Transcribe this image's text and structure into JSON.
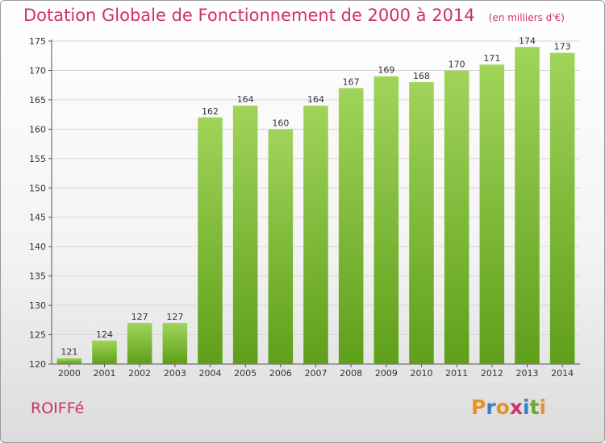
{
  "header": {
    "title": "Dotation Globale de Fonctionnement de 2000 à 2014",
    "subtitle": "(en milliers d'€)"
  },
  "footer": {
    "commune": "ROIFFé",
    "logo_text": "Proxiti",
    "logo_colors": [
      "#e8912c",
      "#3d7ec9",
      "#e8912c",
      "#d0306c",
      "#3d7ec9",
      "#6aa92e",
      "#e8912c"
    ]
  },
  "colors": {
    "title": "#d0306c",
    "bar_top": "#a0d45a",
    "bar_bottom": "#5f9f1a",
    "grid": "#d6d6d6",
    "axis": "#555555"
  },
  "chart_data": {
    "type": "bar",
    "title": "Dotation Globale de Fonctionnement de 2000 à 2014",
    "subtitle": "(en milliers d'€)",
    "xlabel": "",
    "ylabel": "",
    "categories": [
      "2000",
      "2001",
      "2002",
      "2003",
      "2004",
      "2005",
      "2006",
      "2007",
      "2008",
      "2009",
      "2010",
      "2011",
      "2012",
      "2013",
      "2014"
    ],
    "values": [
      121,
      124,
      127,
      127,
      162,
      164,
      160,
      164,
      167,
      169,
      168,
      170,
      171,
      174,
      173
    ],
    "ylim": [
      120,
      175
    ],
    "yticks": [
      120,
      125,
      130,
      135,
      140,
      145,
      150,
      155,
      160,
      165,
      170,
      175
    ],
    "grid": true,
    "data_labels": true,
    "legend": "none"
  }
}
